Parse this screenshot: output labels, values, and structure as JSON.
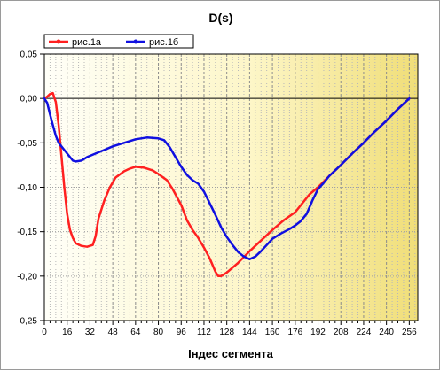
{
  "chart_data": {
    "type": "line",
    "title": "D(s)",
    "xlabel": "Індес сегмента",
    "ylabel": "",
    "xlim": [
      0,
      262
    ],
    "ylim": [
      -0.25,
      0.05
    ],
    "x_ticks": [
      0,
      16,
      32,
      48,
      64,
      80,
      96,
      112,
      128,
      144,
      160,
      176,
      192,
      208,
      224,
      240,
      256
    ],
    "y_ticks": [
      0.05,
      0.0,
      -0.05,
      -0.1,
      -0.15,
      -0.2,
      -0.25
    ],
    "y_tick_labels": [
      "0,05",
      "0,00",
      "-0,05",
      "-0,10",
      "-0,15",
      "-0,20",
      "-0,25"
    ],
    "grid": true,
    "legend_position": "top-left",
    "series": [
      {
        "name": "рис.1а",
        "color": "#ff2020",
        "points": [
          [
            0,
            0.0
          ],
          [
            2,
            0.002
          ],
          [
            4,
            0.005
          ],
          [
            6,
            0.006
          ],
          [
            8,
            -0.004
          ],
          [
            10,
            -0.03
          ],
          [
            12,
            -0.065
          ],
          [
            14,
            -0.1
          ],
          [
            16,
            -0.13
          ],
          [
            18,
            -0.148
          ],
          [
            20,
            -0.157
          ],
          [
            22,
            -0.163
          ],
          [
            26,
            -0.166
          ],
          [
            30,
            -0.167
          ],
          [
            34,
            -0.165
          ],
          [
            36,
            -0.155
          ],
          [
            38,
            -0.135
          ],
          [
            42,
            -0.115
          ],
          [
            46,
            -0.1
          ],
          [
            50,
            -0.089
          ],
          [
            56,
            -0.082
          ],
          [
            60,
            -0.079
          ],
          [
            64,
            -0.077
          ],
          [
            70,
            -0.078
          ],
          [
            76,
            -0.081
          ],
          [
            80,
            -0.085
          ],
          [
            86,
            -0.092
          ],
          [
            90,
            -0.102
          ],
          [
            96,
            -0.12
          ],
          [
            100,
            -0.137
          ],
          [
            104,
            -0.148
          ],
          [
            108,
            -0.157
          ],
          [
            112,
            -0.168
          ],
          [
            116,
            -0.18
          ],
          [
            120,
            -0.195
          ],
          [
            122,
            -0.2
          ],
          [
            124,
            -0.2
          ],
          [
            128,
            -0.196
          ],
          [
            136,
            -0.185
          ],
          [
            144,
            -0.172
          ],
          [
            152,
            -0.16
          ],
          [
            160,
            -0.148
          ],
          [
            168,
            -0.137
          ],
          [
            176,
            -0.128
          ],
          [
            180,
            -0.12
          ],
          [
            186,
            -0.108
          ],
          [
            192,
            -0.1
          ],
          [
            200,
            -0.087
          ],
          [
            208,
            -0.075
          ],
          [
            216,
            -0.062
          ],
          [
            224,
            -0.05
          ],
          [
            232,
            -0.037
          ],
          [
            240,
            -0.025
          ],
          [
            248,
            -0.012
          ],
          [
            256,
            0.0
          ]
        ]
      },
      {
        "name": "рис.1б",
        "color": "#1010e0",
        "points": [
          [
            0,
            0.0
          ],
          [
            2,
            -0.005
          ],
          [
            4,
            -0.018
          ],
          [
            6,
            -0.03
          ],
          [
            8,
            -0.042
          ],
          [
            10,
            -0.05
          ],
          [
            14,
            -0.058
          ],
          [
            18,
            -0.066
          ],
          [
            20,
            -0.07
          ],
          [
            22,
            -0.071
          ],
          [
            26,
            -0.07
          ],
          [
            30,
            -0.066
          ],
          [
            36,
            -0.062
          ],
          [
            42,
            -0.058
          ],
          [
            48,
            -0.054
          ],
          [
            56,
            -0.05
          ],
          [
            64,
            -0.046
          ],
          [
            72,
            -0.044
          ],
          [
            80,
            -0.045
          ],
          [
            84,
            -0.047
          ],
          [
            88,
            -0.055
          ],
          [
            92,
            -0.066
          ],
          [
            96,
            -0.077
          ],
          [
            100,
            -0.086
          ],
          [
            104,
            -0.092
          ],
          [
            108,
            -0.096
          ],
          [
            112,
            -0.105
          ],
          [
            116,
            -0.118
          ],
          [
            120,
            -0.131
          ],
          [
            124,
            -0.145
          ],
          [
            128,
            -0.156
          ],
          [
            132,
            -0.165
          ],
          [
            136,
            -0.173
          ],
          [
            140,
            -0.178
          ],
          [
            144,
            -0.181
          ],
          [
            148,
            -0.178
          ],
          [
            152,
            -0.172
          ],
          [
            156,
            -0.165
          ],
          [
            160,
            -0.158
          ],
          [
            166,
            -0.152
          ],
          [
            172,
            -0.147
          ],
          [
            176,
            -0.143
          ],
          [
            180,
            -0.138
          ],
          [
            184,
            -0.13
          ],
          [
            188,
            -0.115
          ],
          [
            192,
            -0.102
          ],
          [
            196,
            -0.095
          ],
          [
            200,
            -0.087
          ],
          [
            208,
            -0.075
          ],
          [
            216,
            -0.062
          ],
          [
            224,
            -0.05
          ],
          [
            232,
            -0.037
          ],
          [
            240,
            -0.025
          ],
          [
            248,
            -0.012
          ],
          [
            256,
            0.0
          ]
        ]
      }
    ]
  }
}
